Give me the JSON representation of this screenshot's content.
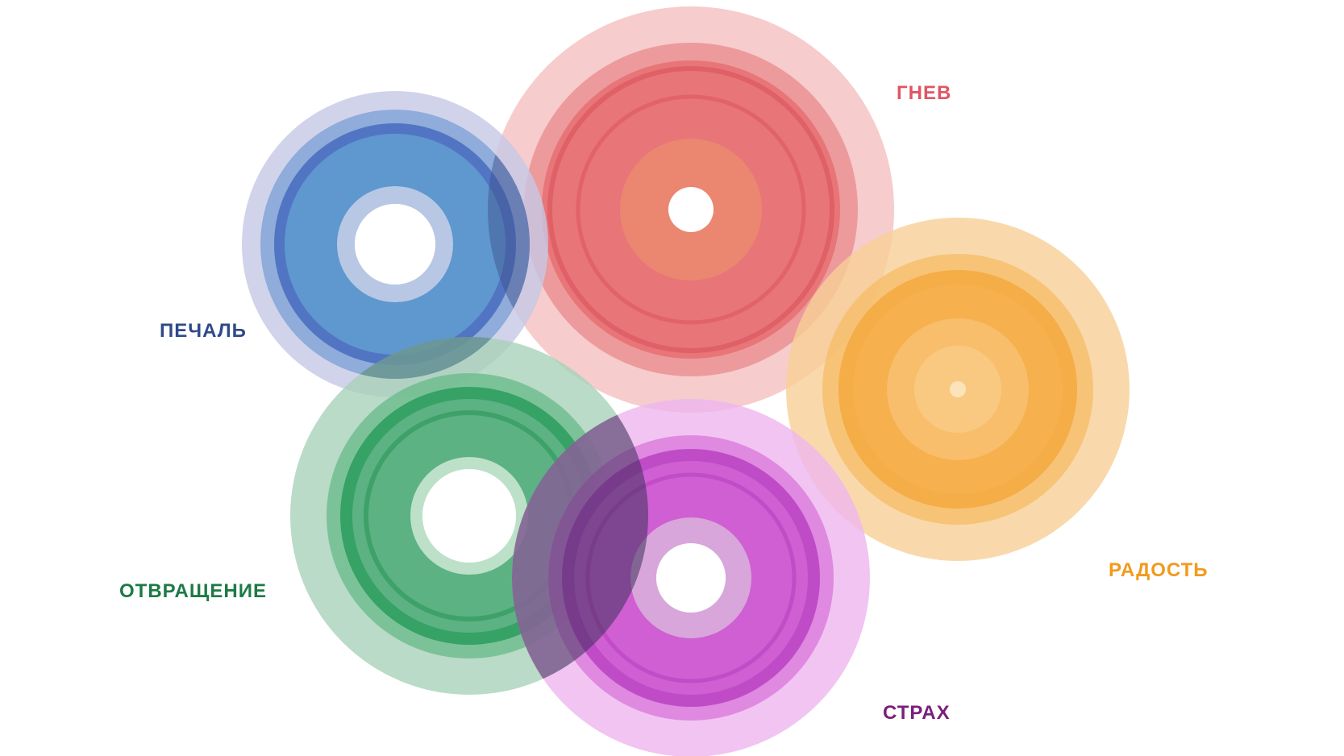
{
  "emotions": {
    "anger": {
      "label": "ГНЕВ",
      "color": "#e05563"
    },
    "sadness": {
      "label": "ПЕЧАЛЬ",
      "color": "#2f4a8a"
    },
    "joy": {
      "label": "РАДОСТЬ",
      "color": "#f29a1d"
    },
    "disgust": {
      "label": "ОТВРАЩЕНИЕ",
      "color": "#1d7a46"
    },
    "fear": {
      "label": "СТРАХ",
      "color": "#7a1f7a"
    }
  },
  "palette": {
    "anger_fill": "#e46a6c",
    "anger_halo": "#f2b8b8",
    "anger_core": "#eb8a6e",
    "sadness_fill": "#4a86c8",
    "sadness_halo": "#c5c8e6",
    "disgust_fill": "#3da56a",
    "disgust_halo": "#a9d2b9",
    "joy_fill": "#f5a53a",
    "joy_halo": "#f8cf96",
    "fear_fill": "#c94fd0",
    "fear_halo": "#efb5ef"
  }
}
